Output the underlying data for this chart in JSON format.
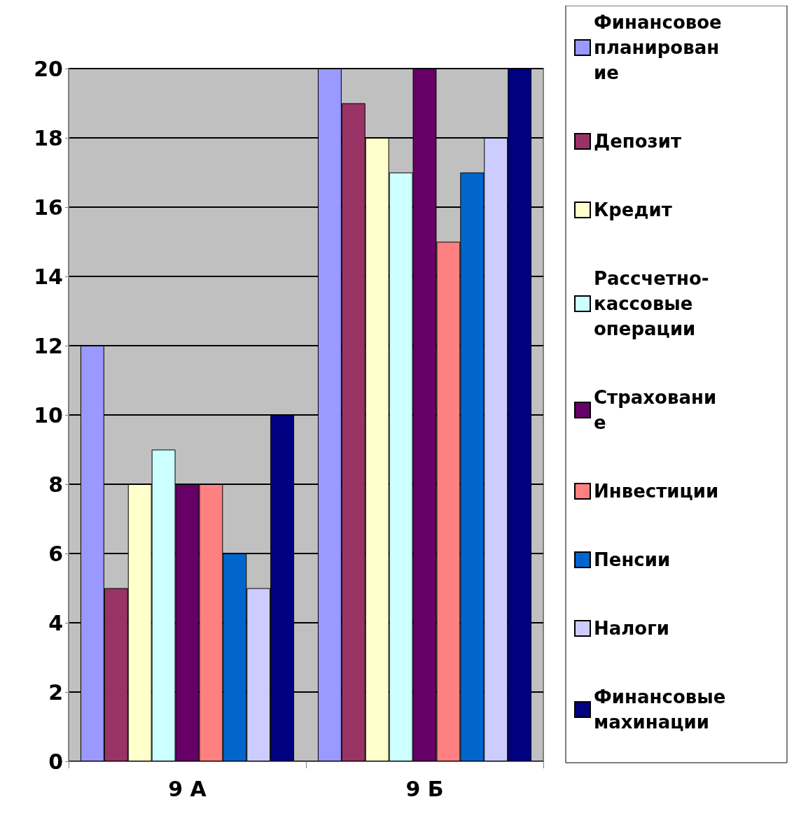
{
  "chart_data": {
    "type": "bar",
    "categories": [
      "9 А",
      "9 Б"
    ],
    "series": [
      {
        "name": "Финансовое планирование",
        "color": "#9999ff",
        "values": [
          12,
          20
        ]
      },
      {
        "name": "Депозит",
        "color": "#993366",
        "values": [
          5,
          19
        ]
      },
      {
        "name": "Кредит",
        "color": "#ffffcc",
        "values": [
          8,
          18
        ]
      },
      {
        "name": "Рассчетно-кассовые операции",
        "color": "#ccffff",
        "values": [
          9,
          17
        ]
      },
      {
        "name": "Страхование",
        "color": "#660066",
        "values": [
          8,
          20
        ]
      },
      {
        "name": "Инвестиции",
        "color": "#ff8080",
        "values": [
          8,
          15
        ]
      },
      {
        "name": "Пенсии",
        "color": "#0066cc",
        "values": [
          6,
          17
        ]
      },
      {
        "name": "Налоги",
        "color": "#ccccff",
        "values": [
          5,
          18
        ]
      },
      {
        "name": "Финансовые махинации",
        "color": "#000080",
        "values": [
          10,
          20
        ]
      }
    ],
    "ylim": [
      0,
      20
    ],
    "yticks": [
      0,
      2,
      4,
      6,
      8,
      10,
      12,
      14,
      16,
      18,
      20
    ],
    "grid": "y",
    "legend": "right"
  }
}
